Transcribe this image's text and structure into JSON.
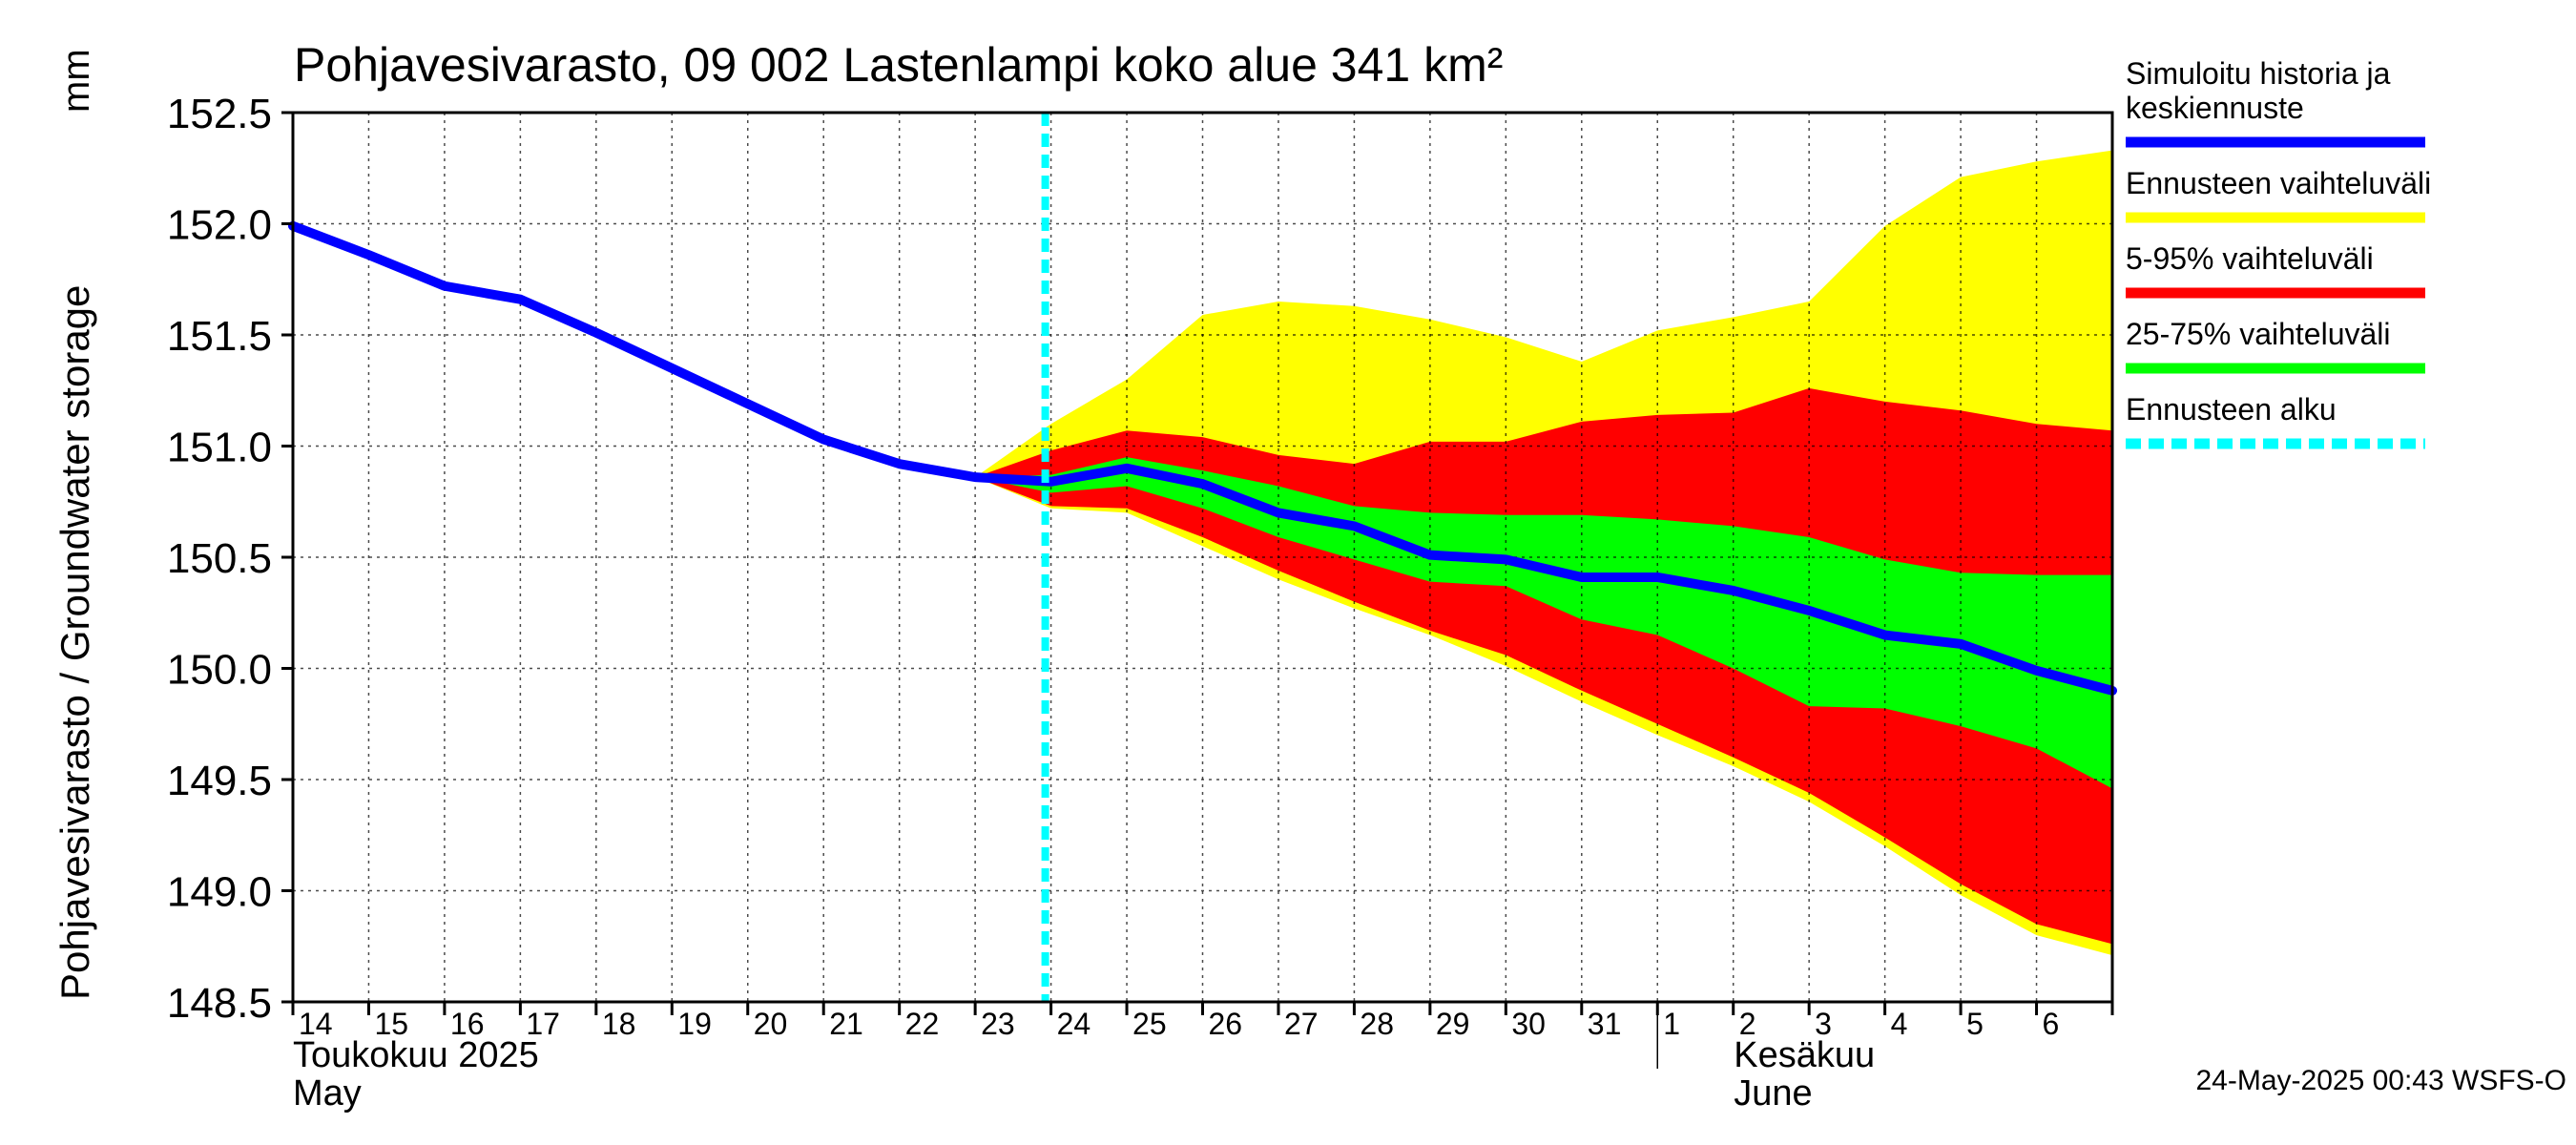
{
  "chart_data": {
    "type": "area",
    "title": "Pohjavesivarasto, 09 002 Lastenlampi koko alue 341 km²",
    "ylabel": "Pohjavesivarasto / Groundwater storage",
    "yunit": "mm",
    "ylim": [
      148.5,
      152.5
    ],
    "yticks": [
      148.5,
      149.0,
      149.5,
      150.0,
      150.5,
      151.0,
      151.5,
      152.0,
      152.5
    ],
    "ytick_labels": [
      "148.5",
      "149.0",
      "149.5",
      "150.0",
      "150.5",
      "151.0",
      "151.5",
      "152.0",
      "152.5"
    ],
    "grid": true,
    "x_day_range": [
      0,
      24
    ],
    "x_tick_labels": [
      "14",
      "15",
      "16",
      "17",
      "18",
      "19",
      "20",
      "21",
      "22",
      "23",
      "24",
      "25",
      "26",
      "27",
      "28",
      "29",
      "30",
      "31",
      "1",
      "2",
      "3",
      "4",
      "5",
      "6"
    ],
    "month_labels": [
      {
        "line1": "Toukokuu  2025",
        "line2": "May",
        "at_day": 0
      },
      {
        "line1": "Kesäkuu",
        "line2": "June",
        "at_day": 18
      }
    ],
    "forecast_start_day": 10,
    "legend": [
      {
        "label_lines": [
          "Simuloitu historia ja",
          "keskiennuste"
        ],
        "color": "#0000ff",
        "style": "solid"
      },
      {
        "label_lines": [
          "Ennusteen vaihteluväli"
        ],
        "color": "#ffff00",
        "style": "solid"
      },
      {
        "label_lines": [
          "5-95% vaihteluväli"
        ],
        "color": "#ff0000",
        "style": "solid"
      },
      {
        "label_lines": [
          "25-75% vaihteluväli"
        ],
        "color": "#00ff00",
        "style": "solid"
      },
      {
        "label_lines": [
          "Ennusteen alku"
        ],
        "color": "#00ffff",
        "style": "dashed"
      }
    ],
    "history_x": [
      0,
      1,
      2,
      3,
      4,
      5,
      6,
      7,
      8,
      9
    ],
    "history_y": [
      151.99,
      151.86,
      151.72,
      151.66,
      151.51,
      151.35,
      151.19,
      151.03,
      150.92,
      150.86
    ],
    "forecast_x": [
      9,
      10,
      11,
      12,
      13,
      14,
      15,
      16,
      17,
      18,
      19,
      20,
      21,
      22,
      23,
      24
    ],
    "bands": [
      {
        "name": "Ennusteen vaihteluväli",
        "color": "#ffff00",
        "upper": [
          150.86,
          151.1,
          151.3,
          151.59,
          151.65,
          151.63,
          151.57,
          151.49,
          151.38,
          151.52,
          151.58,
          151.65,
          151.99,
          152.21,
          152.28,
          152.33
        ],
        "lower": [
          150.86,
          150.72,
          150.7,
          150.55,
          150.4,
          150.27,
          150.15,
          150.01,
          149.85,
          149.7,
          149.56,
          149.4,
          149.2,
          148.98,
          148.8,
          148.71
        ]
      },
      {
        "name": "5-95% vaihteluväli",
        "color": "#ff0000",
        "upper": [
          150.86,
          150.98,
          151.07,
          151.04,
          150.96,
          150.92,
          151.02,
          151.02,
          151.11,
          151.14,
          151.15,
          151.26,
          151.2,
          151.16,
          151.1,
          151.07
        ],
        "lower": [
          150.86,
          150.73,
          150.72,
          150.59,
          150.44,
          150.3,
          150.17,
          150.06,
          149.9,
          149.75,
          149.6,
          149.44,
          149.24,
          149.03,
          148.85,
          148.76
        ]
      },
      {
        "name": "25-75% vaihteluväli",
        "color": "#00ff00",
        "upper": [
          150.86,
          150.87,
          150.95,
          150.89,
          150.82,
          150.73,
          150.7,
          150.69,
          150.69,
          150.67,
          150.64,
          150.59,
          150.49,
          150.43,
          150.42,
          150.42
        ],
        "lower": [
          150.86,
          150.79,
          150.82,
          150.72,
          150.59,
          150.49,
          150.39,
          150.37,
          150.22,
          150.15,
          150.0,
          149.83,
          149.82,
          149.74,
          149.64,
          149.46
        ]
      }
    ],
    "median_y": [
      150.86,
      150.84,
      150.9,
      150.83,
      150.7,
      150.64,
      150.51,
      150.49,
      150.41,
      150.41,
      150.35,
      150.26,
      150.15,
      150.11,
      149.99,
      149.9
    ]
  },
  "timestamp": "24-May-2025 00:43 WSFS-O",
  "colors": {
    "median": "#0000ff",
    "forecast_start": "#00ffff",
    "grid": "#000000",
    "background": "#ffffff"
  }
}
